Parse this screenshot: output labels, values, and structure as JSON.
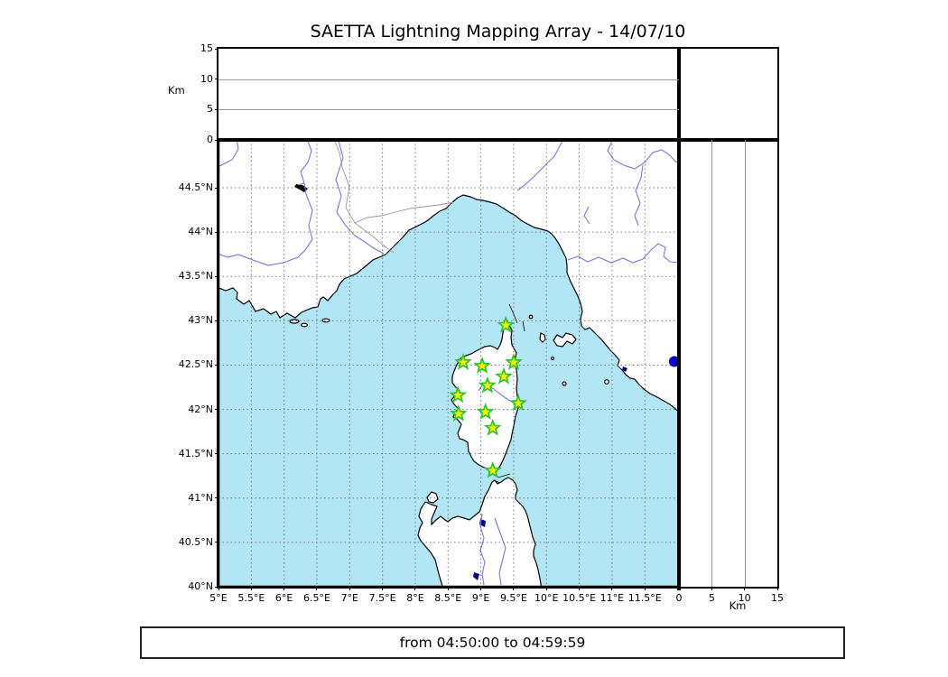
{
  "title": "SAETTA Lightning Mapping Array - 14/07/10",
  "footer": {
    "label": "from 04:50:00 to 04:59:59"
  },
  "colors": {
    "sea": "#b3e6f5",
    "land": "#ffffff",
    "coastline": "#000000",
    "river": "#7878de",
    "country_border": "#999999",
    "map_grid": "#666666",
    "panel_grid": "#999999",
    "station_fill": "#ffef00",
    "station_edge": "#28c828",
    "event_dot": "#0000cc",
    "lake": "#000000",
    "lake_small": "#00008b"
  },
  "chart_data": {
    "type": "scatter",
    "title": "SAETTA Lightning Mapping Array - 14/07/10",
    "time_window": {
      "from": "04:50:00",
      "to": "04:59:59"
    },
    "map_panel": {
      "lon_range": [
        5.0,
        12.02
      ],
      "lat_range": [
        40.0,
        45.04
      ],
      "lon_tick_values": [
        5,
        5.5,
        6,
        6.5,
        7,
        7.5,
        8,
        8.5,
        9,
        9.5,
        10,
        10.5,
        11,
        11.5
      ],
      "xlabel_ticks": [
        "5°E",
        "5.5°E",
        "6°E",
        "6.5°E",
        "7°E",
        "7.5°E",
        "8°E",
        "8.5°E",
        "9°E",
        "9.5°E",
        "10°E",
        "10.5°E",
        "11°E",
        "11.5°E"
      ],
      "lat_tick_values": [
        44.5,
        44,
        43.5,
        43,
        42.5,
        42,
        41.5,
        41,
        40.5,
        40
      ],
      "ylabel_ticks": [
        "44.5°N",
        "44°N",
        "43.5°N",
        "43°N",
        "42.5°N",
        "42°N",
        "41.5°N",
        "41°N",
        "40.5°N",
        "40°N"
      ],
      "stations_lon_lat": [
        [
          9.38,
          42.95
        ],
        [
          8.73,
          42.53
        ],
        [
          9.02,
          42.49
        ],
        [
          9.5,
          42.53
        ],
        [
          9.35,
          42.37
        ],
        [
          9.1,
          42.27
        ],
        [
          8.65,
          42.16
        ],
        [
          9.57,
          42.07
        ],
        [
          9.07,
          41.97
        ],
        [
          8.66,
          41.95
        ],
        [
          9.18,
          41.79
        ],
        [
          9.18,
          41.31
        ]
      ],
      "event_points_lon_lat": [
        [
          11.95,
          42.54
        ]
      ]
    },
    "altitude_panels": {
      "unit": "Km",
      "range_km": [
        0,
        15
      ],
      "tick_values": [
        0,
        5,
        10,
        15
      ],
      "grid_values": [
        5,
        10
      ],
      "points": []
    }
  }
}
